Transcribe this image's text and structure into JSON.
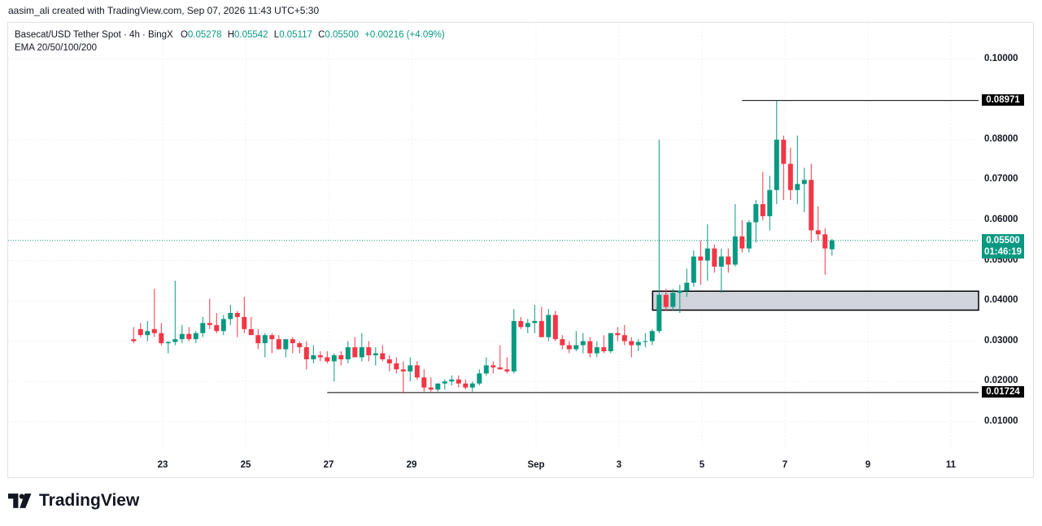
{
  "header": {
    "attribution": "aasim_ali created with TradingView.com, Sep 07, 2026 11:43 UTC+5:30"
  },
  "legend": {
    "symbol": "Basecat/USD Tether Spot · 4h · BingX",
    "o_label": "O",
    "o_value": "0.05278",
    "h_label": "H",
    "h_value": "0.05542",
    "l_label": "L",
    "l_value": "0.05117",
    "c_label": "C",
    "c_value": "0.05500",
    "change": "+0.00216 (+4.09%)",
    "indicator": "EMA 20/50/100/200"
  },
  "branding": {
    "name": "TradingView"
  },
  "colors": {
    "up": "#089981",
    "down": "#f23645",
    "grid": "#e6e8ee",
    "zone_fill": "#d1d4dc",
    "line": "#000000"
  },
  "price_tags": {
    "high_level": "0.08971",
    "low_level": "0.01724",
    "last_price": "0.05500",
    "countdown": "01:46:19"
  },
  "chart_data": {
    "type": "candlestick",
    "y_ticks": [
      "0.10000",
      "0.08000",
      "0.07000",
      "0.06000",
      "0.05000",
      "0.04000",
      "0.03000",
      "0.02000",
      "0.01000"
    ],
    "x_ticks": [
      "23",
      "25",
      "27",
      "29",
      "Sep",
      "3",
      "5",
      "7",
      "9",
      "11"
    ],
    "x_tick_days": [
      23,
      25,
      27,
      29,
      32,
      34,
      36,
      38,
      40,
      42
    ],
    "ylim": [
      0.0025,
      0.109
    ],
    "horizontal_levels": [
      0.08971,
      0.01724
    ],
    "zone": {
      "low": 0.0377,
      "high": 0.0424
    },
    "candles": [
      [
        0.0305,
        0.0335,
        0.0295,
        0.03
      ],
      [
        0.033,
        0.0345,
        0.031,
        0.0315
      ],
      [
        0.0315,
        0.035,
        0.03,
        0.0325
      ],
      [
        0.033,
        0.043,
        0.031,
        0.032
      ],
      [
        0.032,
        0.0345,
        0.029,
        0.0295
      ],
      [
        0.0295,
        0.03,
        0.027,
        0.0298
      ],
      [
        0.0298,
        0.045,
        0.029,
        0.0305
      ],
      [
        0.0305,
        0.034,
        0.0295,
        0.0318
      ],
      [
        0.0318,
        0.0335,
        0.03,
        0.0305
      ],
      [
        0.0305,
        0.0325,
        0.0295,
        0.032
      ],
      [
        0.032,
        0.036,
        0.031,
        0.0345
      ],
      [
        0.0345,
        0.0405,
        0.033,
        0.034
      ],
      [
        0.034,
        0.037,
        0.032,
        0.0325
      ],
      [
        0.0325,
        0.0365,
        0.0315,
        0.0355
      ],
      [
        0.0355,
        0.039,
        0.034,
        0.037
      ],
      [
        0.037,
        0.0375,
        0.031,
        0.036
      ],
      [
        0.036,
        0.041,
        0.032,
        0.033
      ],
      [
        0.033,
        0.036,
        0.032,
        0.0315
      ],
      [
        0.0315,
        0.033,
        0.028,
        0.0295
      ],
      [
        0.0295,
        0.032,
        0.026,
        0.0315
      ],
      [
        0.0315,
        0.032,
        0.027,
        0.0305
      ],
      [
        0.0305,
        0.0315,
        0.028,
        0.028
      ],
      [
        0.028,
        0.0305,
        0.026,
        0.0305
      ],
      [
        0.0305,
        0.031,
        0.027,
        0.0295
      ],
      [
        0.0295,
        0.03,
        0.027,
        0.0285
      ],
      [
        0.0285,
        0.03,
        0.023,
        0.0255
      ],
      [
        0.0255,
        0.029,
        0.0245,
        0.0265
      ],
      [
        0.0265,
        0.0275,
        0.025,
        0.026
      ],
      [
        0.026,
        0.0275,
        0.0245,
        0.025
      ],
      [
        0.025,
        0.027,
        0.02,
        0.0265
      ],
      [
        0.0265,
        0.0275,
        0.024,
        0.0255
      ],
      [
        0.0255,
        0.03,
        0.0245,
        0.0285
      ],
      [
        0.0285,
        0.031,
        0.026,
        0.026
      ],
      [
        0.026,
        0.032,
        0.025,
        0.0285
      ],
      [
        0.0285,
        0.03,
        0.025,
        0.0265
      ],
      [
        0.0265,
        0.0285,
        0.024,
        0.027
      ],
      [
        0.027,
        0.029,
        0.025,
        0.0255
      ],
      [
        0.0255,
        0.0265,
        0.0225,
        0.0245
      ],
      [
        0.0245,
        0.026,
        0.022,
        0.023
      ],
      [
        0.023,
        0.025,
        0.017,
        0.0225
      ],
      [
        0.0225,
        0.026,
        0.02,
        0.024
      ],
      [
        0.024,
        0.025,
        0.0205,
        0.021
      ],
      [
        0.021,
        0.023,
        0.0175,
        0.0185
      ],
      [
        0.0185,
        0.021,
        0.0175,
        0.018
      ],
      [
        0.018,
        0.0195,
        0.0175,
        0.0195
      ],
      [
        0.0195,
        0.0205,
        0.018,
        0.02
      ],
      [
        0.02,
        0.0215,
        0.019,
        0.0205
      ],
      [
        0.0205,
        0.0215,
        0.0185,
        0.0195
      ],
      [
        0.0195,
        0.0205,
        0.018,
        0.0185
      ],
      [
        0.0185,
        0.02,
        0.0175,
        0.0195
      ],
      [
        0.0195,
        0.023,
        0.019,
        0.022
      ],
      [
        0.022,
        0.026,
        0.0215,
        0.024
      ],
      [
        0.024,
        0.025,
        0.022,
        0.0235
      ],
      [
        0.0235,
        0.029,
        0.023,
        0.023
      ],
      [
        0.023,
        0.026,
        0.022,
        0.0225
      ],
      [
        0.0225,
        0.038,
        0.022,
        0.035
      ],
      [
        0.035,
        0.036,
        0.033,
        0.0335
      ],
      [
        0.0335,
        0.0355,
        0.032,
        0.0345
      ],
      [
        0.0345,
        0.039,
        0.032,
        0.035
      ],
      [
        0.035,
        0.0385,
        0.031,
        0.031
      ],
      [
        0.031,
        0.038,
        0.03,
        0.0365
      ],
      [
        0.0365,
        0.0375,
        0.03,
        0.0305
      ],
      [
        0.0305,
        0.0315,
        0.028,
        0.029
      ],
      [
        0.029,
        0.03,
        0.027,
        0.028
      ],
      [
        0.028,
        0.0325,
        0.0275,
        0.029
      ],
      [
        0.029,
        0.032,
        0.027,
        0.03
      ],
      [
        0.03,
        0.031,
        0.026,
        0.027
      ],
      [
        0.027,
        0.03,
        0.026,
        0.0285
      ],
      [
        0.0285,
        0.0315,
        0.027,
        0.0275
      ],
      [
        0.0275,
        0.032,
        0.027,
        0.032
      ],
      [
        0.032,
        0.0335,
        0.03,
        0.0315
      ],
      [
        0.0315,
        0.034,
        0.029,
        0.03
      ],
      [
        0.03,
        0.031,
        0.026,
        0.029
      ],
      [
        0.029,
        0.0305,
        0.0275,
        0.0298
      ],
      [
        0.0298,
        0.032,
        0.0285,
        0.03
      ],
      [
        0.03,
        0.033,
        0.029,
        0.0325
      ],
      [
        0.0325,
        0.08,
        0.032,
        0.0415
      ],
      [
        0.0415,
        0.043,
        0.0375,
        0.0385
      ],
      [
        0.0385,
        0.043,
        0.0375,
        0.042
      ],
      [
        0.042,
        0.044,
        0.037,
        0.0425
      ],
      [
        0.0425,
        0.048,
        0.041,
        0.0445
      ],
      [
        0.0445,
        0.0525,
        0.0435,
        0.051
      ],
      [
        0.051,
        0.055,
        0.044,
        0.05
      ],
      [
        0.05,
        0.059,
        0.045,
        0.053
      ],
      [
        0.053,
        0.054,
        0.047,
        0.0485
      ],
      [
        0.0485,
        0.053,
        0.042,
        0.051
      ],
      [
        0.051,
        0.053,
        0.047,
        0.049
      ],
      [
        0.049,
        0.064,
        0.0485,
        0.056
      ],
      [
        0.056,
        0.06,
        0.052,
        0.053
      ],
      [
        0.053,
        0.06,
        0.052,
        0.0595
      ],
      [
        0.0595,
        0.065,
        0.0545,
        0.064
      ],
      [
        0.064,
        0.072,
        0.06,
        0.061
      ],
      [
        0.061,
        0.071,
        0.0575,
        0.0675
      ],
      [
        0.0675,
        0.0897,
        0.064,
        0.08
      ],
      [
        0.08,
        0.081,
        0.065,
        0.074
      ],
      [
        0.074,
        0.078,
        0.065,
        0.0675
      ],
      [
        0.0675,
        0.081,
        0.064,
        0.069
      ],
      [
        0.069,
        0.073,
        0.062,
        0.07
      ],
      [
        0.07,
        0.074,
        0.0545,
        0.0575
      ],
      [
        0.0575,
        0.0635,
        0.055,
        0.0565
      ],
      [
        0.0565,
        0.058,
        0.0465,
        0.053
      ],
      [
        0.0528,
        0.0554,
        0.0512,
        0.055
      ]
    ]
  }
}
